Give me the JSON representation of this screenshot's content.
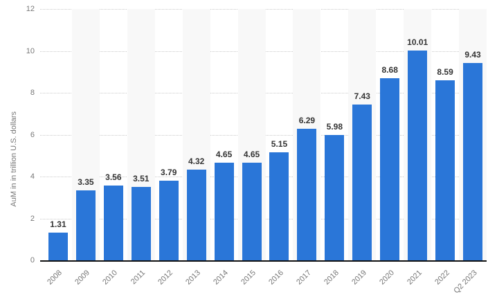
{
  "chart_data": {
    "type": "bar",
    "title": "",
    "xlabel": "",
    "ylabel": "AuM in in trillion U.S. dollars",
    "categories": [
      "2008",
      "2009",
      "2010",
      "2011",
      "2012",
      "2013",
      "2014",
      "2015",
      "2016",
      "2017",
      "2018",
      "2019",
      "2020",
      "2021",
      "2022",
      "Q2 2023"
    ],
    "values": [
      1.31,
      3.35,
      3.56,
      3.51,
      3.79,
      4.32,
      4.65,
      4.65,
      5.15,
      6.29,
      5.98,
      7.43,
      8.68,
      10.01,
      8.59,
      9.43
    ],
    "value_labels": [
      "1.31",
      "3.35",
      "3.56",
      "3.51",
      "3.79",
      "4.32",
      "4.65",
      "4.65",
      "5.15",
      "6.29",
      "5.98",
      "7.43",
      "8.68",
      "10.01",
      "8.59",
      "9.43"
    ],
    "ylim": [
      0,
      12
    ],
    "yticks": [
      0,
      2,
      4,
      6,
      8,
      10,
      12
    ],
    "grid": "horizontal-dotted",
    "legend": "none",
    "colors": {
      "bar": "#2a76d8",
      "band": "#f8f8f8",
      "gridline": "#c9c9c9",
      "axis_line": "#111111",
      "tick_text": "#767676",
      "value_text": "#333333",
      "background": "#ffffff"
    }
  }
}
